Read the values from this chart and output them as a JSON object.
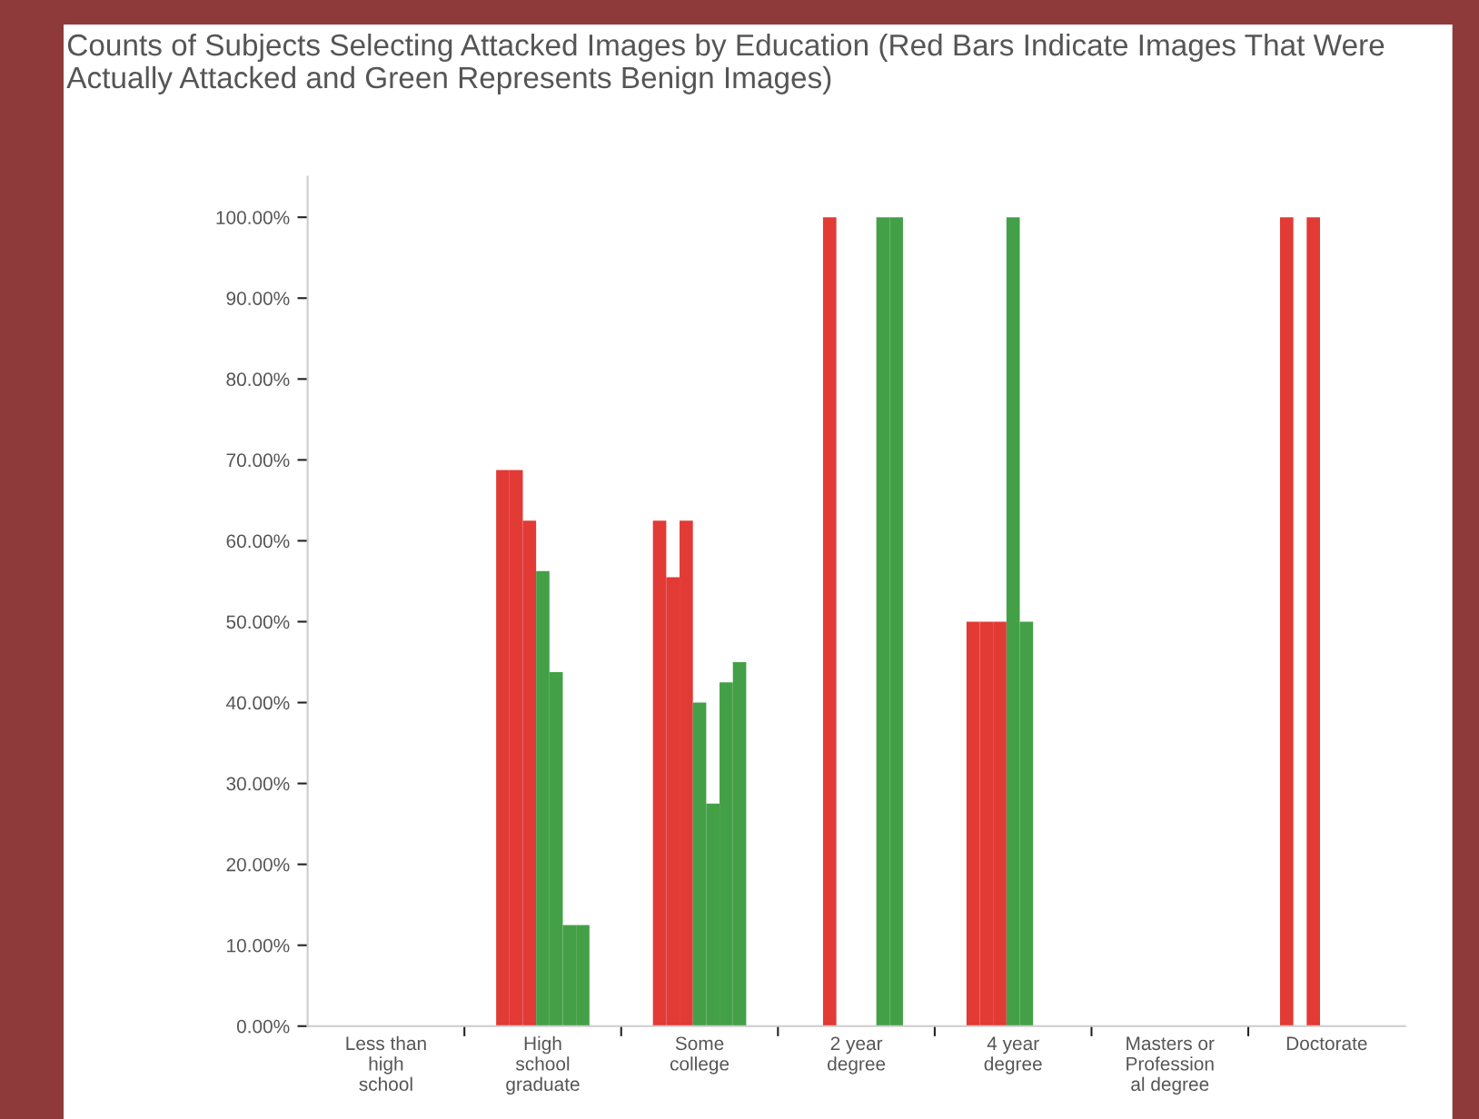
{
  "chart_data": {
    "type": "bar",
    "title": "Counts of Subjects Selecting Attacked Images by Education (Red Bars Indicate Images That Were Actually Attacked and Green Represents Benign Images)",
    "categories": [
      "Less than\nhigh\nschool",
      "High\nschool\ngraduate",
      "Some\ncollege",
      "2 year\ndegree",
      "4 year\ndegree",
      "Masters or\nProfession\nal degree",
      "Doctorate"
    ],
    "series": [
      {
        "color": "#e23a35",
        "values": [
          0,
          68.75,
          62.5,
          0,
          50,
          0,
          100
        ]
      },
      {
        "color": "#e23a35",
        "values": [
          0,
          68.75,
          55.5,
          100,
          50,
          0,
          0
        ]
      },
      {
        "color": "#e23a35",
        "values": [
          0,
          62.5,
          62.5,
          0,
          50,
          0,
          100
        ]
      },
      {
        "color": "#43a047",
        "values": [
          0,
          56.25,
          40,
          0,
          100,
          0,
          0
        ]
      },
      {
        "color": "#43a047",
        "values": [
          0,
          43.75,
          27.5,
          0,
          50,
          0,
          0
        ]
      },
      {
        "color": "#43a047",
        "values": [
          0,
          12.5,
          42.5,
          100,
          0,
          0,
          0
        ]
      },
      {
        "color": "#43a047",
        "values": [
          0,
          12.5,
          45,
          100,
          0,
          0,
          0
        ]
      }
    ],
    "ylim": [
      0,
      105
    ],
    "yticks": [
      {
        "value": 0,
        "label": "0.00%"
      },
      {
        "value": 10,
        "label": "10.00%"
      },
      {
        "value": 20,
        "label": "20.00%"
      },
      {
        "value": 30,
        "label": "30.00%"
      },
      {
        "value": 40,
        "label": "40.00%"
      },
      {
        "value": 50,
        "label": "50.00%"
      },
      {
        "value": 60,
        "label": "60.00%"
      },
      {
        "value": 70,
        "label": "70.00%"
      },
      {
        "value": 80,
        "label": "80.00%"
      },
      {
        "value": 90,
        "label": "90.00%"
      },
      {
        "value": 100,
        "label": "100.00%"
      }
    ],
    "grid": false,
    "legend": false
  }
}
